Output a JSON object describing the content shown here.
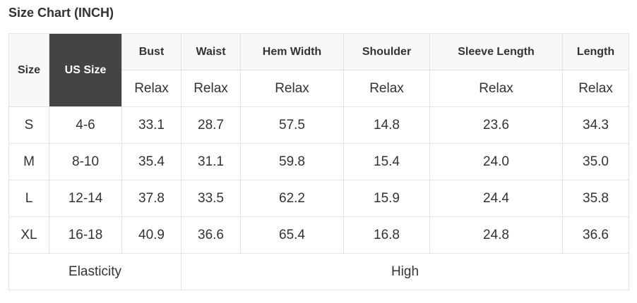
{
  "title": "Size Chart (INCH)",
  "colors": {
    "header_bg": "#f8f8f8",
    "highlight_bg": "#444444",
    "border": "#e3e3e3"
  },
  "headers": {
    "size": "Size",
    "us_size": "US Size",
    "columns": [
      "Bust",
      "Waist",
      "Hem Width",
      "Shoulder",
      "Sleeve Length",
      "Length"
    ],
    "fit": [
      "Relax",
      "Relax",
      "Relax",
      "Relax",
      "Relax",
      "Relax"
    ]
  },
  "rows": [
    [
      "S",
      "4-6",
      "33.1",
      "28.7",
      "57.5",
      "14.8",
      "23.6",
      "34.3"
    ],
    [
      "M",
      "8-10",
      "35.4",
      "31.1",
      "59.8",
      "15.4",
      "24.0",
      "35.0"
    ],
    [
      "L",
      "12-14",
      "37.8",
      "33.5",
      "62.2",
      "15.9",
      "24.4",
      "35.8"
    ],
    [
      "XL",
      "16-18",
      "40.9",
      "36.6",
      "65.4",
      "16.8",
      "24.8",
      "36.6"
    ]
  ],
  "footer": {
    "label": "Elasticity",
    "value": "High"
  }
}
